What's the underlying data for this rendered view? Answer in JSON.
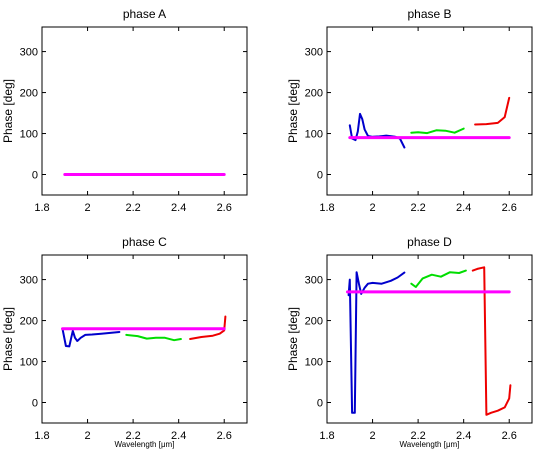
{
  "chart_data": [
    {
      "type": "line",
      "title": "phase A",
      "ylabel": "Phase [deg]",
      "xlabel": "",
      "xlim": [
        1.8,
        2.7
      ],
      "ylim": [
        -50,
        360
      ],
      "xticks": [
        "1.8",
        "2",
        "2.2",
        "2.4",
        "2.6"
      ],
      "yticks": [
        "0",
        "100",
        "200",
        "300"
      ],
      "series": [
        {
          "color": "#ff00ff",
          "x": [
            1.9,
            2.6
          ],
          "y": [
            0,
            0
          ]
        }
      ]
    },
    {
      "type": "line",
      "title": "phase B",
      "ylabel": "Phase [deg]",
      "xlabel": "",
      "xlim": [
        1.8,
        2.7
      ],
      "ylim": [
        -50,
        360
      ],
      "xticks": [
        "1.8",
        "2",
        "2.2",
        "2.4",
        "2.6"
      ],
      "yticks": [
        "0",
        "100",
        "200",
        "300"
      ],
      "series": [
        {
          "color": "#0000cc",
          "x": [
            1.9,
            1.91,
            1.925,
            1.935,
            1.945,
            1.955,
            1.965,
            1.98,
            2.0,
            2.03,
            2.06,
            2.1,
            2.12,
            2.14
          ],
          "y": [
            120,
            88,
            84,
            105,
            148,
            135,
            110,
            94,
            92,
            93,
            95,
            92,
            88,
            66
          ]
        },
        {
          "color": "#00dd00",
          "x": [
            2.17,
            2.2,
            2.24,
            2.28,
            2.32,
            2.36,
            2.4
          ],
          "y": [
            102,
            103,
            101,
            108,
            107,
            102,
            112
          ]
        },
        {
          "color": "#ee0000",
          "x": [
            2.45,
            2.5,
            2.55,
            2.58,
            2.6
          ],
          "y": [
            122,
            123,
            126,
            140,
            187
          ]
        },
        {
          "color": "#ff00ff",
          "x": [
            1.9,
            2.6
          ],
          "y": [
            90,
            90
          ]
        }
      ]
    },
    {
      "type": "line",
      "title": "phase C",
      "ylabel": "Phase [deg]",
      "xlabel": "Wavelength [μm]",
      "xlim": [
        1.8,
        2.7
      ],
      "ylim": [
        -50,
        360
      ],
      "xticks": [
        "1.8",
        "2",
        "2.2",
        "2.4",
        "2.6"
      ],
      "yticks": [
        "0",
        "100",
        "200",
        "300"
      ],
      "series": [
        {
          "color": "#0000cc",
          "x": [
            1.89,
            1.905,
            1.92,
            1.935,
            1.945,
            1.955,
            1.97,
            1.99,
            2.02,
            2.06,
            2.1,
            2.14
          ],
          "y": [
            180,
            138,
            137,
            175,
            158,
            150,
            158,
            165,
            166,
            168,
            170,
            172
          ]
        },
        {
          "color": "#00dd00",
          "x": [
            2.17,
            2.22,
            2.26,
            2.3,
            2.34,
            2.38,
            2.41
          ],
          "y": [
            165,
            162,
            156,
            158,
            158,
            152,
            155
          ]
        },
        {
          "color": "#ee0000",
          "x": [
            2.45,
            2.5,
            2.55,
            2.58,
            2.6,
            2.605
          ],
          "y": [
            155,
            160,
            163,
            168,
            176,
            210
          ]
        },
        {
          "color": "#ff00ff",
          "x": [
            1.89,
            2.6
          ],
          "y": [
            180,
            180
          ]
        }
      ]
    },
    {
      "type": "line",
      "title": "phase D",
      "ylabel": "Phase [deg]",
      "xlabel": "Wavelength [μm]",
      "xlim": [
        1.8,
        2.7
      ],
      "ylim": [
        -50,
        360
      ],
      "xticks": [
        "1.8",
        "2",
        "2.2",
        "2.4",
        "2.6"
      ],
      "yticks": [
        "0",
        "100",
        "200",
        "300"
      ],
      "series": [
        {
          "color": "#0000cc",
          "x": [
            1.895,
            1.9,
            1.91,
            1.915,
            1.922,
            1.93,
            1.94,
            1.95,
            1.965,
            1.98,
            2.0,
            2.04,
            2.08,
            2.11,
            2.14
          ],
          "y": [
            262,
            300,
            -25,
            -25,
            -25,
            318,
            290,
            265,
            280,
            290,
            292,
            290,
            297,
            305,
            317
          ]
        },
        {
          "color": "#00dd00",
          "x": [
            2.17,
            2.19,
            2.22,
            2.26,
            2.3,
            2.34,
            2.38,
            2.41
          ],
          "y": [
            290,
            282,
            303,
            312,
            307,
            318,
            316,
            322
          ]
        },
        {
          "color": "#ee0000",
          "x": [
            2.44,
            2.46,
            2.49,
            2.5,
            2.52,
            2.55,
            2.58,
            2.6,
            2.605
          ],
          "y": [
            322,
            326,
            330,
            -30,
            -25,
            -20,
            -12,
            10,
            42
          ]
        },
        {
          "color": "#ff00ff",
          "x": [
            1.89,
            2.6
          ],
          "y": [
            270,
            270
          ]
        }
      ]
    }
  ]
}
